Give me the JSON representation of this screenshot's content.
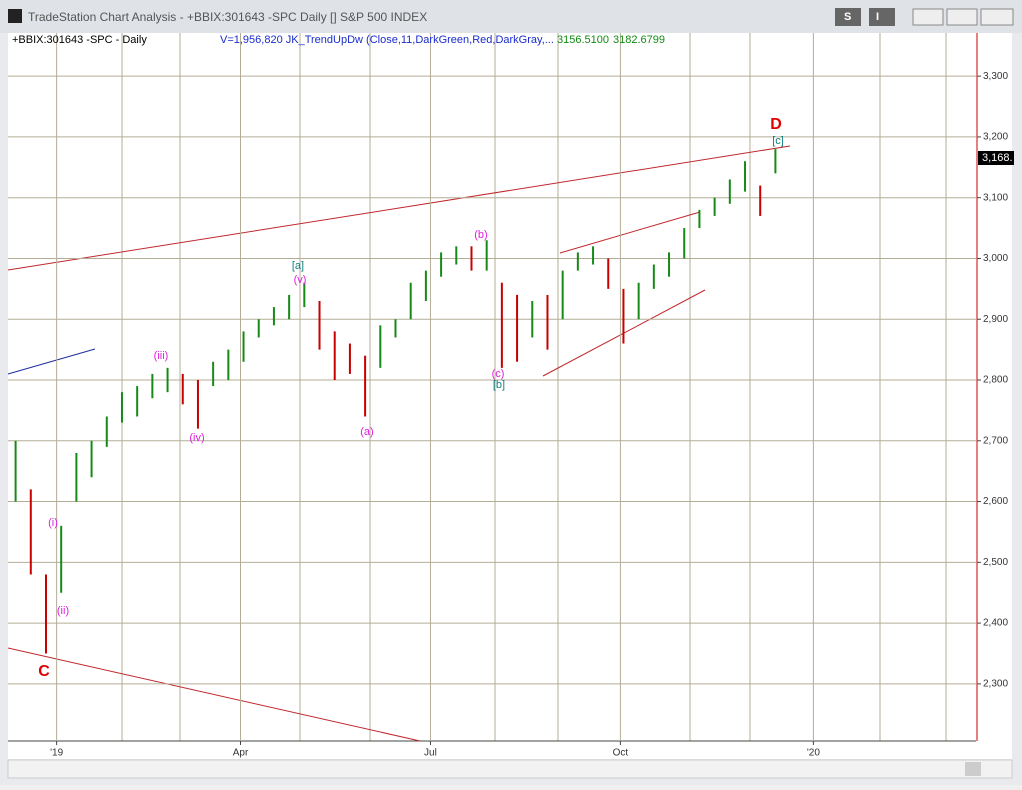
{
  "window": {
    "title": "TradeStation Chart Analysis - +BBIX:301643 -SPC Daily [] S&P 500 INDEX",
    "buttons": [
      "S",
      "I"
    ]
  },
  "info": {
    "symbol": "+BBIX:301643 -SPC - Daily",
    "indicator": "V=1,956,820 JK_TrendUpDw (Close,11,DarkGreen,Red,DarkGray,...",
    "value1": "3156.5100",
    "value2": "3182.6799",
    "last_price": "3,168."
  },
  "chart_data": {
    "type": "ohlc",
    "x": [
      0.5,
      1.5,
      2.5,
      3.5,
      4.5,
      5.5,
      6.5,
      7.5,
      8.5,
      9.5,
      10.5,
      11.5,
      12.5,
      13.5,
      14.5,
      15.5,
      16.5,
      17.5,
      18.5,
      19.5,
      20.5,
      21.5,
      22.5,
      23.5,
      24.5,
      25.5,
      26.5,
      27.5,
      28.5,
      29.5,
      30.5,
      31.5,
      32.5,
      33.5,
      34.5,
      35.5,
      36.5,
      37.5,
      38.5,
      39.5,
      40.5,
      41.5,
      42.5,
      43.5,
      44.5,
      45.5,
      46.5,
      47.5,
      48.5,
      49.5,
      50.5
    ],
    "high": [
      2700,
      2620,
      2480,
      2560,
      2680,
      2700,
      2740,
      2780,
      2790,
      2810,
      2820,
      2810,
      2800,
      2830,
      2850,
      2880,
      2900,
      2920,
      2940,
      2960,
      2930,
      2880,
      2860,
      2840,
      2890,
      2900,
      2960,
      2980,
      3010,
      3020,
      3020,
      3030,
      2960,
      2940,
      2930,
      2940,
      2980,
      3010,
      3020,
      3000,
      2950,
      2960,
      2990,
      3010,
      3050,
      3080,
      3100,
      3130,
      3160,
      3120,
      3180
    ],
    "low": [
      2600,
      2480,
      2350,
      2450,
      2600,
      2640,
      2690,
      2730,
      2740,
      2770,
      2780,
      2760,
      2720,
      2790,
      2800,
      2830,
      2870,
      2890,
      2900,
      2920,
      2850,
      2800,
      2810,
      2740,
      2820,
      2870,
      2900,
      2930,
      2970,
      2990,
      2980,
      2980,
      2820,
      2830,
      2870,
      2850,
      2900,
      2980,
      2990,
      2950,
      2860,
      2900,
      2950,
      2970,
      3000,
      3050,
      3070,
      3090,
      3110,
      3070,
      3140
    ],
    "up_color": "#168a16",
    "down_color": "#c80000",
    "xlim": [
      0,
      63.7
    ],
    "xticks": [
      {
        "value": 3.2,
        "label": "'19"
      },
      {
        "value": 15.3,
        "label": "Apr"
      },
      {
        "value": 27.8,
        "label": "Jul"
      },
      {
        "value": 40.3,
        "label": "Oct"
      },
      {
        "value": 53,
        "label": "'20"
      }
    ],
    "ylim": [
      2206,
      3371
    ],
    "yticks": [
      {
        "value": 2300,
        "label": "2,300"
      },
      {
        "value": 2400,
        "label": "2,400"
      },
      {
        "value": 2500,
        "label": "2,500"
      },
      {
        "value": 2600,
        "label": "2,600"
      },
      {
        "value": 2700,
        "label": "2,700"
      },
      {
        "value": 2800,
        "label": "2,800"
      },
      {
        "value": 2900,
        "label": "2,900"
      },
      {
        "value": 3000,
        "label": "3,000"
      },
      {
        "value": 3100,
        "label": "3,100"
      },
      {
        "value": 3200,
        "label": "3,200"
      },
      {
        "value": 3300,
        "label": "3,300"
      }
    ],
    "grid": true,
    "annotations": [
      "C",
      "(i)",
      "(ii)",
      "(iii)",
      "(iv)",
      "[a]",
      "(v)",
      "(a)",
      "(b)",
      "(c)",
      "[b]",
      "[c]",
      "D"
    ]
  }
}
